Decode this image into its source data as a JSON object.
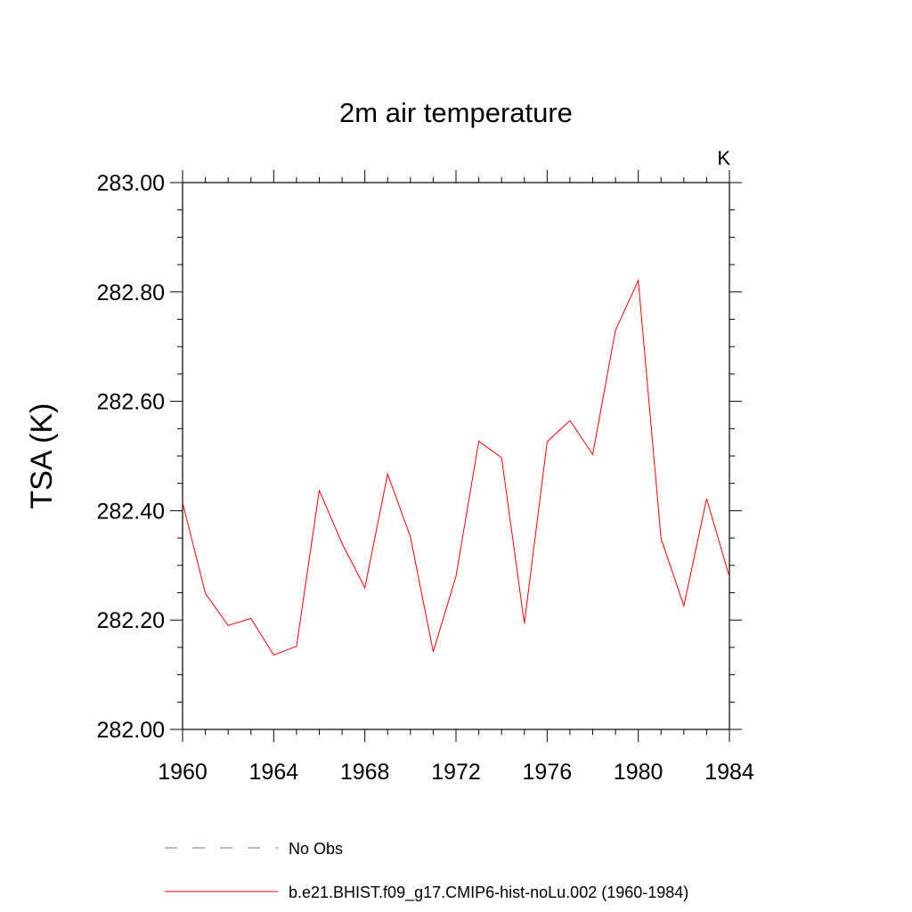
{
  "chart_data": {
    "type": "line",
    "title": "2m air temperature",
    "units_label": "K",
    "ylabel": "TSA  (K)",
    "xlabel": "",
    "xlim": [
      1960,
      1984
    ],
    "ylim": [
      282.0,
      283.0
    ],
    "x_ticks": [
      "1960",
      "1964",
      "1968",
      "1972",
      "1976",
      "1980",
      "1984"
    ],
    "y_ticks": [
      "282.00",
      "282.20",
      "282.40",
      "282.60",
      "282.80",
      "283.00"
    ],
    "grid": false,
    "legend_placement": "bottom",
    "x": [
      1960,
      1961,
      1962,
      1963,
      1964,
      1965,
      1966,
      1967,
      1968,
      1969,
      1970,
      1971,
      1972,
      1973,
      1974,
      1975,
      1976,
      1977,
      1978,
      1979,
      1980,
      1981,
      1982,
      1983,
      1984
    ],
    "series": [
      {
        "name": "b.e21.BHIST.f09_g17.CMIP6-hist-noLu.002 (1960-1984)",
        "color": "#ff0000",
        "style": "solid",
        "values": [
          282.415,
          282.249,
          282.19,
          282.203,
          282.136,
          282.152,
          282.437,
          282.34,
          282.259,
          282.467,
          282.352,
          282.142,
          282.28,
          282.527,
          282.497,
          282.194,
          282.526,
          282.565,
          282.503,
          282.73,
          282.821,
          282.349,
          282.226,
          282.422,
          282.279
        ]
      }
    ],
    "legend": [
      {
        "label": "No Obs",
        "color": "#7b6fb8",
        "style": "dashed"
      },
      {
        "label": "b.e21.BHIST.f09_g17.CMIP6-hist-noLu.002 (1960-1984)",
        "color": "#ff0000",
        "style": "solid"
      }
    ]
  }
}
